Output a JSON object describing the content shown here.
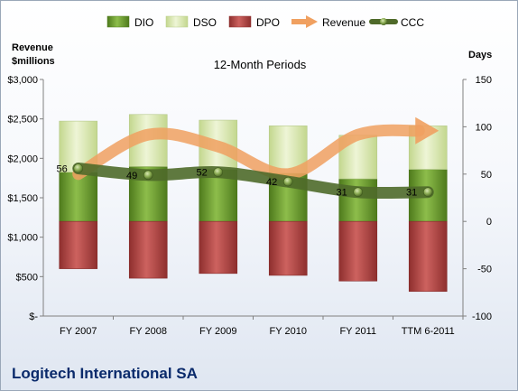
{
  "company": "Logitech International SA",
  "chart_data": {
    "type": "bar",
    "title": "12-Month Periods",
    "categories": [
      "FY 2007",
      "FY 2008",
      "FY 2009",
      "FY 2010",
      "FY 2011",
      "TTM 6-2011"
    ],
    "left_axis": {
      "label_line1": "Revenue",
      "label_line2": "$millions",
      "range": [
        0,
        3000
      ],
      "ticks": [
        0,
        500,
        1000,
        1500,
        2000,
        2500,
        3000
      ],
      "tick_labels": [
        "$-",
        "$500",
        "$1,000",
        "$1,500",
        "$2,000",
        "$2,500",
        "$3,000"
      ]
    },
    "right_axis": {
      "label": "Days",
      "range": [
        -100,
        150
      ],
      "ticks": [
        -100,
        -50,
        0,
        50,
        100,
        150
      ],
      "tick_labels": [
        "-100",
        "-50",
        "0",
        "50",
        "100",
        "150"
      ]
    },
    "legend": {
      "position": "top",
      "items": [
        "DIO",
        "DSO",
        "DPO",
        "Revenue",
        "CCC"
      ]
    },
    "grid": false,
    "series": [
      {
        "name": "DIO",
        "axis": "right",
        "kind": "stacked-bar",
        "color": "#6b9a2d",
        "values": [
          52,
          58,
          55,
          51,
          45,
          55
        ]
      },
      {
        "name": "DSO",
        "axis": "right",
        "kind": "stacked-bar",
        "color": "#dce9b6",
        "values": [
          54,
          55,
          52,
          50,
          46,
          46
        ]
      },
      {
        "name": "DPO",
        "axis": "right",
        "kind": "stacked-bar-negative",
        "color": "#b94a48",
        "values": [
          -50,
          -60,
          -55,
          -57,
          -63,
          -74
        ]
      },
      {
        "name": "Revenue",
        "axis": "left",
        "kind": "line",
        "color": "#f0a060",
        "values": [
          1800,
          2300,
          2150,
          1800,
          2300,
          2350
        ]
      },
      {
        "name": "CCC",
        "axis": "right",
        "kind": "line",
        "color": "#4f6a2a",
        "values": [
          56,
          49,
          52,
          42,
          31,
          31
        ]
      }
    ],
    "data_labels": [
      "56",
      "49",
      "52",
      "42",
      "31",
      "31"
    ]
  }
}
